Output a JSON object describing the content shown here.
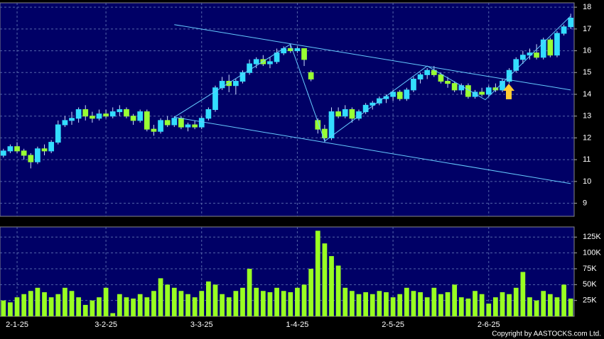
{
  "chart_data": {
    "type": "candlestick",
    "categories": [
      null,
      null,
      "2-1-25",
      null,
      null,
      null,
      null,
      null,
      null,
      null,
      null,
      null,
      null,
      null,
      null,
      "3-2-25",
      null,
      null,
      null,
      null,
      null,
      null,
      null,
      null,
      null,
      null,
      null,
      null,
      null,
      "3-3-25",
      null,
      null,
      null,
      null,
      null,
      null,
      null,
      null,
      null,
      null,
      null,
      null,
      null,
      "1-4-25",
      null,
      null,
      null,
      null,
      null,
      null,
      null,
      null,
      null,
      null,
      null,
      null,
      null,
      "2-5-25",
      null,
      null,
      null,
      null,
      null,
      null,
      null,
      null,
      null,
      null,
      null,
      null,
      null,
      "2-6-25",
      null,
      null,
      null,
      null,
      null,
      null,
      null,
      null,
      null,
      null,
      null,
      null
    ],
    "ohlc": [
      [
        11.2,
        11.5,
        11.1,
        11.4
      ],
      [
        11.4,
        11.7,
        11.3,
        11.6
      ],
      [
        11.6,
        11.8,
        11.3,
        11.4
      ],
      [
        11.4,
        11.5,
        11.0,
        11.2
      ],
      [
        11.2,
        11.3,
        10.6,
        10.9
      ],
      [
        10.9,
        11.6,
        10.8,
        11.5
      ],
      [
        11.5,
        11.7,
        11.2,
        11.4
      ],
      [
        11.4,
        11.9,
        11.3,
        11.8
      ],
      [
        11.8,
        12.8,
        11.7,
        12.6
      ],
      [
        12.6,
        13.0,
        12.5,
        12.8
      ],
      [
        12.8,
        13.2,
        12.6,
        12.9
      ],
      [
        12.9,
        13.4,
        12.7,
        13.3
      ],
      [
        13.3,
        13.5,
        12.8,
        13.0
      ],
      [
        13.0,
        13.2,
        12.7,
        12.9
      ],
      [
        12.9,
        13.3,
        12.8,
        13.1
      ],
      [
        13.1,
        13.3,
        12.9,
        13.0
      ],
      [
        13.0,
        13.4,
        12.9,
        13.2
      ],
      [
        13.2,
        13.5,
        13.0,
        13.3
      ],
      [
        13.3,
        13.4,
        12.9,
        13.0
      ],
      [
        13.0,
        13.1,
        12.6,
        12.8
      ],
      [
        12.8,
        13.3,
        12.7,
        13.2
      ],
      [
        13.2,
        13.3,
        12.3,
        12.4
      ],
      [
        12.4,
        12.6,
        12.1,
        12.3
      ],
      [
        12.3,
        12.9,
        12.2,
        12.8
      ],
      [
        12.8,
        13.0,
        12.5,
        12.6
      ],
      [
        12.6,
        13.0,
        12.5,
        12.9
      ],
      [
        12.9,
        13.0,
        12.4,
        12.5
      ],
      [
        12.5,
        12.7,
        12.3,
        12.6
      ],
      [
        12.6,
        12.8,
        12.4,
        12.5
      ],
      [
        12.5,
        13.0,
        12.4,
        12.9
      ],
      [
        12.9,
        13.4,
        12.8,
        13.3
      ],
      [
        13.3,
        14.4,
        13.2,
        14.3
      ],
      [
        14.3,
        14.8,
        14.2,
        14.6
      ],
      [
        14.6,
        14.9,
        14.1,
        14.4
      ],
      [
        14.4,
        14.7,
        14.0,
        14.6
      ],
      [
        14.6,
        15.1,
        14.5,
        15.0
      ],
      [
        15.0,
        15.6,
        14.9,
        15.4
      ],
      [
        15.4,
        15.7,
        15.2,
        15.6
      ],
      [
        15.6,
        15.8,
        15.3,
        15.4
      ],
      [
        15.4,
        15.7,
        15.2,
        15.5
      ],
      [
        15.5,
        16.1,
        15.4,
        15.9
      ],
      [
        15.9,
        16.2,
        15.8,
        16.1
      ],
      [
        16.1,
        16.3,
        15.9,
        16.0
      ],
      [
        16.0,
        16.2,
        15.9,
        16.1
      ],
      [
        16.1,
        16.1,
        15.3,
        15.6
      ],
      [
        15.0,
        15.1,
        14.6,
        14.7
      ],
      [
        12.8,
        12.9,
        12.2,
        12.4
      ],
      [
        12.4,
        12.6,
        11.8,
        12.0
      ],
      [
        12.0,
        13.4,
        11.9,
        13.2
      ],
      [
        13.2,
        13.4,
        12.9,
        13.0
      ],
      [
        13.0,
        13.5,
        12.9,
        13.3
      ],
      [
        13.3,
        13.4,
        12.7,
        12.9
      ],
      [
        12.9,
        13.3,
        12.8,
        13.2
      ],
      [
        13.2,
        13.6,
        13.1,
        13.5
      ],
      [
        13.5,
        13.7,
        13.3,
        13.6
      ],
      [
        13.6,
        13.9,
        13.5,
        13.8
      ],
      [
        13.8,
        14.0,
        13.6,
        13.9
      ],
      [
        13.9,
        14.2,
        13.7,
        14.1
      ],
      [
        14.1,
        14.2,
        13.7,
        13.8
      ],
      [
        13.8,
        14.3,
        13.7,
        14.2
      ],
      [
        14.2,
        14.8,
        14.1,
        14.7
      ],
      [
        14.7,
        15.0,
        14.5,
        14.9
      ],
      [
        14.9,
        15.2,
        14.7,
        15.1
      ],
      [
        15.1,
        15.3,
        14.8,
        14.9
      ],
      [
        14.9,
        15.0,
        14.5,
        14.6
      ],
      [
        14.6,
        14.8,
        14.3,
        14.5
      ],
      [
        14.5,
        14.6,
        14.1,
        14.2
      ],
      [
        14.2,
        14.5,
        14.0,
        14.4
      ],
      [
        14.4,
        14.5,
        13.8,
        13.9
      ],
      [
        13.9,
        14.2,
        13.8,
        14.1
      ],
      [
        14.1,
        14.3,
        13.9,
        14.0
      ],
      [
        14.0,
        14.4,
        13.9,
        14.3
      ],
      [
        14.3,
        14.5,
        14.1,
        14.2
      ],
      [
        14.2,
        14.7,
        14.1,
        14.6
      ],
      [
        14.6,
        15.2,
        14.5,
        15.1
      ],
      [
        15.1,
        15.7,
        15.0,
        15.6
      ],
      [
        15.6,
        16.0,
        15.4,
        15.8
      ],
      [
        15.8,
        16.1,
        15.6,
        15.9
      ],
      [
        15.9,
        16.3,
        15.6,
        15.7
      ],
      [
        15.7,
        16.6,
        15.6,
        16.5
      ],
      [
        16.5,
        16.6,
        15.7,
        15.8
      ],
      [
        15.8,
        16.9,
        15.7,
        16.8
      ],
      [
        16.8,
        17.2,
        16.7,
        17.1
      ],
      [
        17.1,
        17.7,
        17.0,
        17.5
      ]
    ],
    "volume": [
      25000,
      22000,
      30000,
      35000,
      40000,
      45000,
      38000,
      30000,
      35000,
      45000,
      40000,
      30000,
      18000,
      25000,
      30000,
      45000,
      5000,
      35000,
      30000,
      28000,
      35000,
      30000,
      40000,
      60000,
      50000,
      45000,
      40000,
      35000,
      30000,
      40000,
      55000,
      50000,
      35000,
      30000,
      40000,
      45000,
      75000,
      45000,
      40000,
      38000,
      45000,
      40000,
      38000,
      45000,
      50000,
      75000,
      135000,
      115000,
      95000,
      80000,
      45000,
      40000,
      35000,
      38000,
      35000,
      40000,
      38000,
      30000,
      35000,
      45000,
      40000,
      38000,
      30000,
      45000,
      35000,
      38000,
      50000,
      30000,
      28000,
      40000,
      35000,
      20000,
      30000,
      38000,
      35000,
      45000,
      70000,
      30000,
      25000,
      40000,
      35000,
      30000,
      50000,
      28000
    ],
    "trend_lines": [
      {
        "x": [
          25,
          83
        ],
        "y": [
          17.2,
          14.2
        ]
      },
      {
        "x": [
          25,
          83
        ],
        "y": [
          12.95,
          9.9
        ]
      },
      {
        "x": [
          25,
          42,
          47,
          62,
          70.5,
          83
        ],
        "y": [
          12.95,
          16.3,
          11.85,
          15.3,
          13.75,
          17.6
        ]
      }
    ],
    "ylim": [
      8.4,
      18.2
    ],
    "yticks": [
      9,
      10,
      11,
      12,
      13,
      14,
      15,
      16,
      17,
      18
    ],
    "y2lim": [
      0,
      141000
    ],
    "y2ticks": [
      {
        "value": 25000,
        "label": "25K"
      },
      {
        "value": 50000,
        "label": "50K"
      },
      {
        "value": 75000,
        "label": "75K"
      },
      {
        "value": 100000,
        "label": "100K"
      },
      {
        "value": 125000,
        "label": "125K"
      }
    ],
    "grid": true,
    "up_color": "#33ddff",
    "down_color": "#99ff33",
    "volume_color": "#99ff22",
    "trend_color": "#66ccff",
    "copyright": "Copyright by AASTOCKS.com Ltd."
  }
}
